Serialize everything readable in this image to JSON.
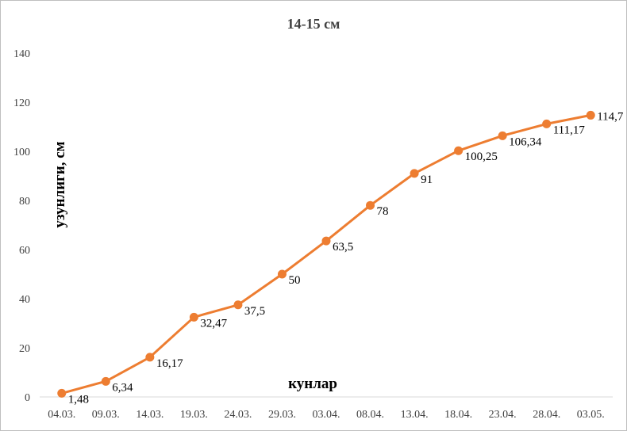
{
  "chart_data": {
    "type": "line",
    "title": "14-15 см",
    "xlabel": "кунлар",
    "ylabel": "узунлиги, см",
    "categories": [
      "04.03.",
      "09.03.",
      "14.03.",
      "19.03.",
      "24.03.",
      "29.03.",
      "03.04.",
      "08.04.",
      "13.04.",
      "18.04.",
      "23.04.",
      "28.04.",
      "03.05."
    ],
    "series": [
      {
        "values": [
          1.48,
          6.34,
          16.17,
          32.47,
          37.5,
          50,
          63.5,
          78,
          91,
          100.25,
          106.34,
          111.17,
          114.7
        ],
        "labels": [
          "1,48",
          "6,34",
          "16,17",
          "32,47",
          "37,5",
          "50",
          "63,5",
          "78",
          "91",
          "100,25",
          "106,34",
          "111,17",
          "114,7"
        ],
        "color": "#ED7D31"
      }
    ],
    "ylim": [
      0,
      140
    ],
    "yticks": [
      "0",
      "20",
      "40",
      "60",
      "80",
      "100",
      "120",
      "140"
    ],
    "grid": false,
    "legend": "none"
  }
}
